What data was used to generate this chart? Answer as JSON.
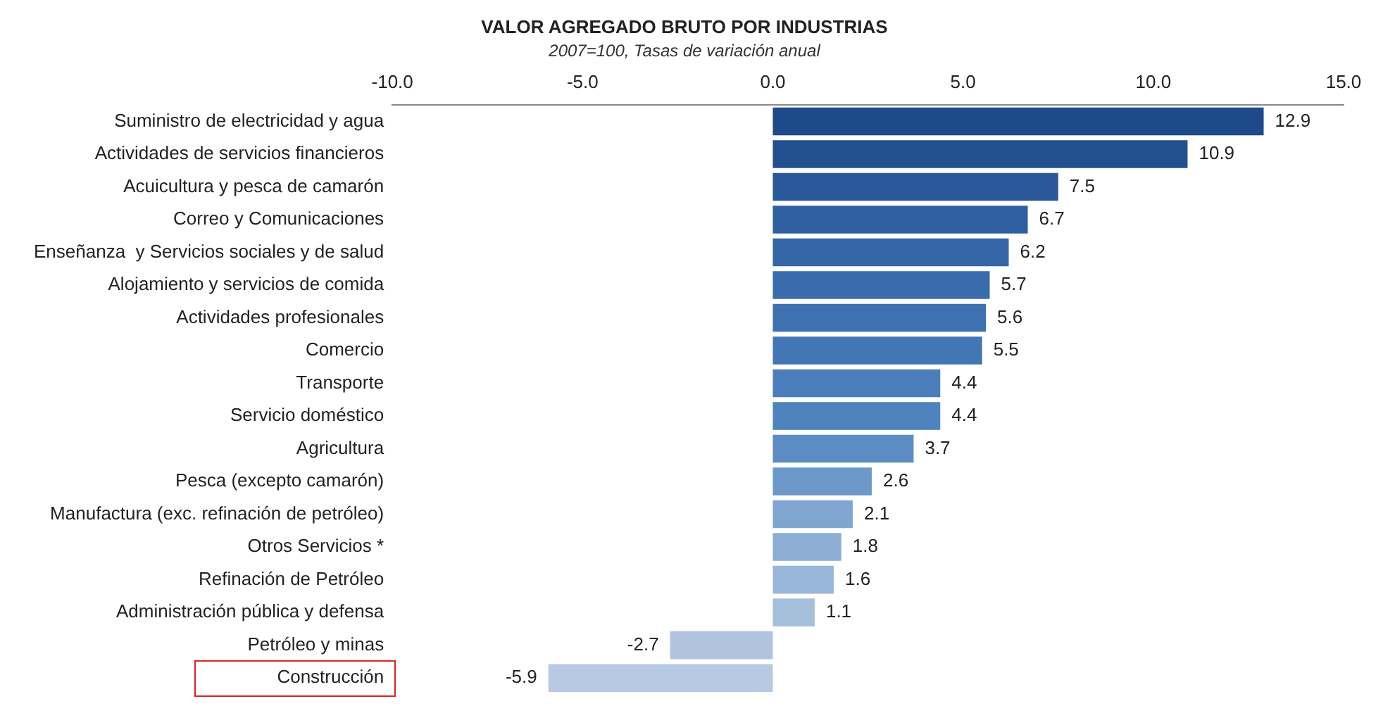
{
  "chart_data": {
    "type": "bar",
    "orientation": "horizontal",
    "title": "VALOR AGREGADO BRUTO POR INDUSTRIAS",
    "subtitle": "2007=100, Tasas de variación anual",
    "categories": [
      "Suministro de electricidad y agua",
      "Actividades de servicios financieros",
      "Acuicultura y pesca de camarón",
      "Correo y Comunicaciones",
      "Enseñanza  y Servicios sociales y de salud",
      "Alojamiento y servicios de comida",
      "Actividades profesionales",
      "Comercio",
      "Transporte",
      "Servicio doméstico",
      "Agricultura",
      "Pesca (excepto camarón)",
      "Manufactura (exc. refinación de petróleo)",
      "Otros Servicios *",
      "Refinación de Petróleo",
      "Administración pública y defensa",
      "Petróleo y minas",
      "Construcción"
    ],
    "values": [
      12.9,
      10.9,
      7.5,
      6.7,
      6.2,
      5.7,
      5.6,
      5.5,
      4.4,
      4.4,
      3.7,
      2.6,
      2.1,
      1.8,
      1.6,
      1.1,
      -2.7,
      -5.9
    ],
    "colors": [
      "#1f4a8a",
      "#23508f",
      "#2a5898",
      "#30609f",
      "#3566a6",
      "#396cac",
      "#3d71b0",
      "#4276b4",
      "#4a7ebb",
      "#4f83be",
      "#5b8cc3",
      "#6d99ca",
      "#7ea6d0",
      "#8caed4",
      "#98b7d8",
      "#a6c0dc",
      "#b0c4e0",
      "#b8cae3"
    ],
    "xlim": [
      -10,
      15
    ],
    "xticks": [
      {
        "value": -10,
        "label": "-10.0"
      },
      {
        "value": -5,
        "label": "-5.0"
      },
      {
        "value": 0,
        "label": "0.0"
      },
      {
        "value": 5,
        "label": "5.0"
      },
      {
        "value": 10,
        "label": "10.0"
      },
      {
        "value": 15,
        "label": "15.0"
      }
    ],
    "data_labels": true,
    "grid": false,
    "legend": false
  }
}
